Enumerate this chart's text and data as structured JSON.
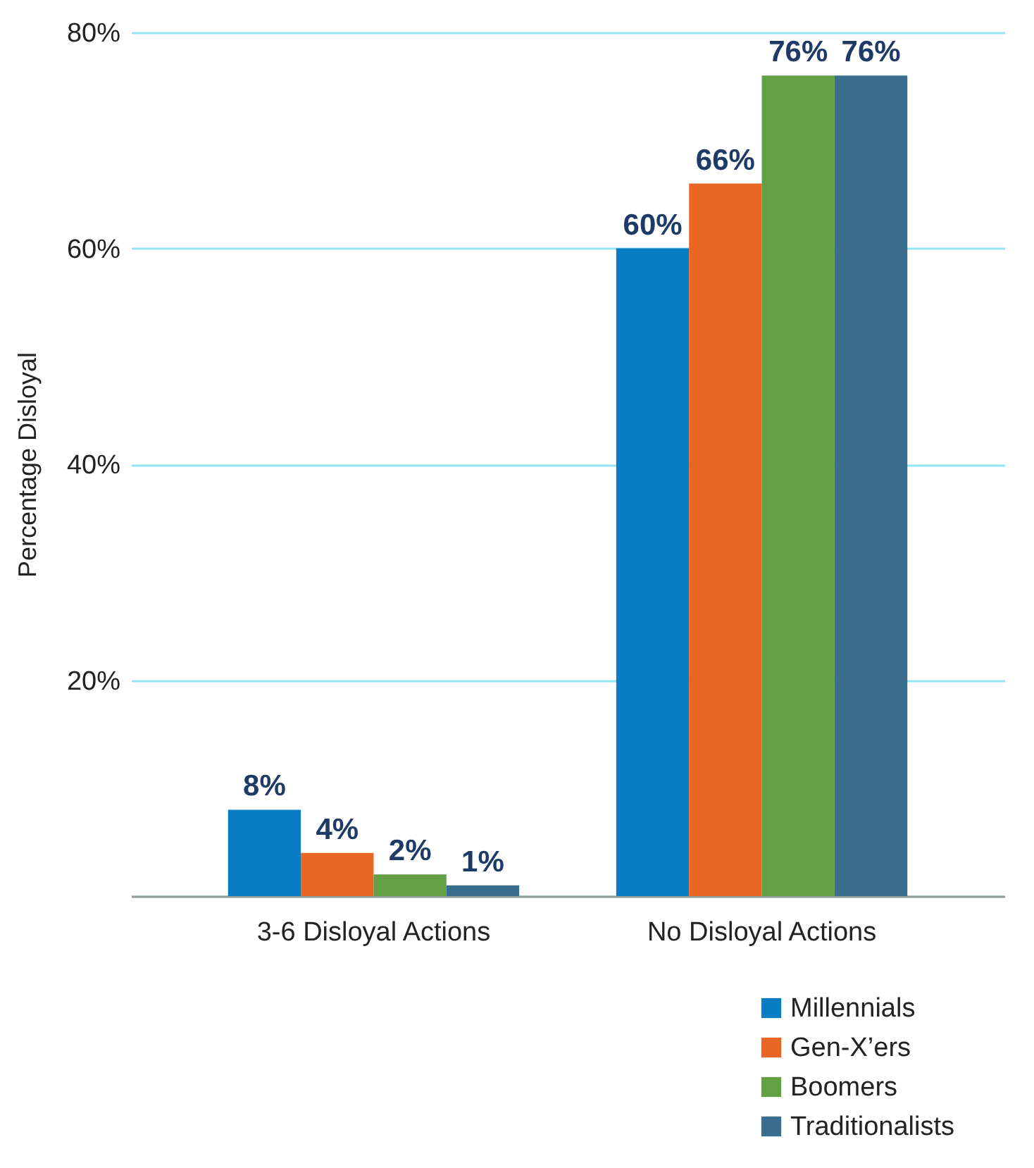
{
  "chart_data": {
    "type": "bar",
    "ylabel": "Percentage Disloyal",
    "categories": [
      "3-6 Disloyal Actions",
      "No Disloyal Actions"
    ],
    "series": [
      {
        "name": "Millennials",
        "color": "#0a7cc4",
        "values": [
          8,
          60
        ],
        "value_labels": [
          "8%",
          "60%"
        ]
      },
      {
        "name": "Gen-X’ers",
        "color": "#ea6625",
        "values": [
          4,
          66
        ],
        "value_labels": [
          "4%",
          "66%"
        ]
      },
      {
        "name": "Boomers",
        "color": "#62a043",
        "values": [
          2,
          76
        ],
        "value_labels": [
          "2%",
          "76%"
        ]
      },
      {
        "name": "Traditionalists",
        "color": "#3b6e8e",
        "values": [
          1,
          76
        ],
        "value_labels": [
          "1%",
          "76%"
        ]
      }
    ],
    "ylim": [
      0,
      80
    ],
    "yticks": [
      {
        "value": 0,
        "label": null
      },
      {
        "value": 20,
        "label": "20%"
      },
      {
        "value": 40,
        "label": "40%"
      },
      {
        "value": 60,
        "label": "60%"
      },
      {
        "value": 80,
        "label": "80%"
      }
    ],
    "grid": "y",
    "legend": "bottom right"
  }
}
